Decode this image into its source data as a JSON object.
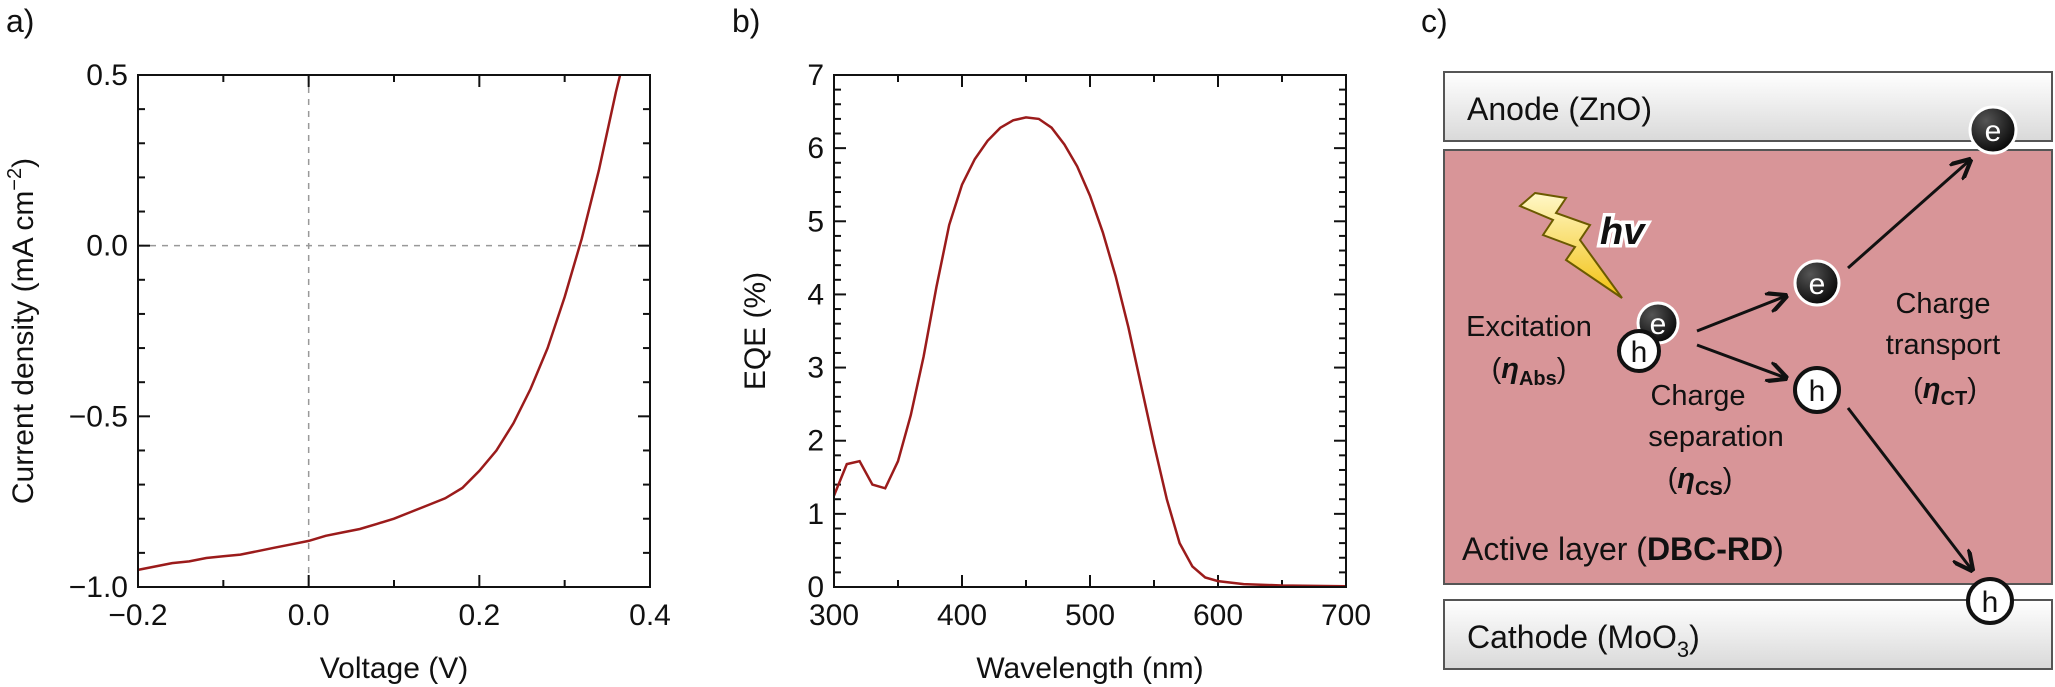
{
  "panels": {
    "a": "a)",
    "b": "b)",
    "c": "c)"
  },
  "chart_data": [
    {
      "type": "line",
      "xlabel": "Voltage (V)",
      "ylabel_main": "Current density (mA cm",
      "ylabel_sup": "−2",
      "ylabel_end": ")",
      "xlim": [
        -0.2,
        0.4
      ],
      "ylim": [
        -1.0,
        0.5
      ],
      "xticks": [
        -0.2,
        0.0,
        0.2,
        0.4
      ],
      "xtick_labels": [
        "−0.2",
        "0.0",
        "0.2",
        "0.4"
      ],
      "yticks": [
        0.5,
        0.0,
        -0.5,
        -1.0
      ],
      "ytick_labels": [
        "0.5",
        "0.0",
        "−0.5",
        "−1.0"
      ],
      "reference_lines": {
        "x": 0.0,
        "y": 0.0
      },
      "color": "#9b1b1b",
      "series": [
        {
          "x": [
            -0.2,
            -0.18,
            -0.16,
            -0.14,
            -0.12,
            -0.1,
            -0.08,
            -0.06,
            -0.04,
            -0.02,
            0.0,
            0.02,
            0.04,
            0.06,
            0.08,
            0.1,
            0.12,
            0.14,
            0.16,
            0.18,
            0.2,
            0.22,
            0.24,
            0.26,
            0.28,
            0.3,
            0.32,
            0.34,
            0.36,
            0.365
          ],
          "y": [
            -0.95,
            -0.94,
            -0.93,
            -0.925,
            -0.915,
            -0.91,
            -0.905,
            -0.895,
            -0.885,
            -0.875,
            -0.865,
            -0.85,
            -0.84,
            -0.83,
            -0.815,
            -0.8,
            -0.78,
            -0.76,
            -0.74,
            -0.71,
            -0.66,
            -0.6,
            -0.52,
            -0.42,
            -0.3,
            -0.15,
            0.02,
            0.22,
            0.45,
            0.5
          ]
        }
      ]
    },
    {
      "type": "line",
      "xlabel": "Wavelength (nm)",
      "ylabel": "EQE (%)",
      "xlim": [
        300,
        700
      ],
      "ylim": [
        0,
        7
      ],
      "xticks": [
        300,
        400,
        500,
        600,
        700
      ],
      "yticks": [
        0,
        1,
        2,
        3,
        4,
        5,
        6,
        7
      ],
      "color": "#9b1b1b",
      "series": [
        {
          "x": [
            300,
            310,
            320,
            330,
            340,
            350,
            360,
            370,
            380,
            390,
            400,
            410,
            420,
            430,
            440,
            450,
            460,
            470,
            480,
            490,
            500,
            510,
            520,
            530,
            540,
            550,
            560,
            570,
            580,
            590,
            600,
            620,
            650,
            700
          ],
          "y": [
            1.25,
            1.68,
            1.72,
            1.4,
            1.35,
            1.72,
            2.35,
            3.15,
            4.1,
            4.95,
            5.5,
            5.85,
            6.1,
            6.28,
            6.38,
            6.42,
            6.4,
            6.28,
            6.05,
            5.75,
            5.35,
            4.85,
            4.25,
            3.55,
            2.75,
            1.95,
            1.2,
            0.6,
            0.28,
            0.13,
            0.08,
            0.04,
            0.02,
            0.01
          ]
        }
      ]
    }
  ],
  "diagram": {
    "anode": "Anode (ZnO)",
    "cathode_main": "Cathode (MoO",
    "cathode_sub": "3",
    "cathode_end": ")",
    "active_prefix": "Active layer (",
    "active_bold": "DBC-RD",
    "active_suffix": ")",
    "hv": "hv",
    "excitation": "Excitation",
    "eta_abs_sub": "Abs",
    "charge_separation_1": "Charge",
    "charge_separation_2": "separation",
    "eta_cs_sub": "CS",
    "charge_transport_1": "Charge",
    "charge_transport_2": "transport",
    "eta_ct_sub": "CT",
    "eta_symbol": "η",
    "electron": "e",
    "hole": "h",
    "colors": {
      "active": "#d89598",
      "electrode": "#efefef",
      "lightning": "#f3d21a"
    }
  }
}
